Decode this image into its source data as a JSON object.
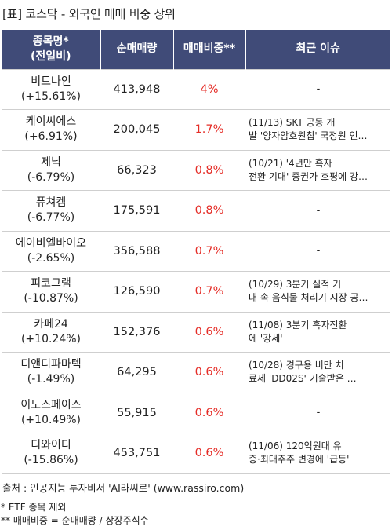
{
  "title": "[표] 코스닥 - 외국인 매매 비중 상위",
  "columns": {
    "name_line1": "종목명*",
    "name_line2": "(전일비)",
    "volume": "순매매량",
    "ratio": "매매비중**",
    "issue": "최근 이슈"
  },
  "rows": [
    {
      "name": "비트나인",
      "change": "(+15.61%)",
      "volume": "413,948",
      "ratio": "4%",
      "issue_line1": "-",
      "issue_line2": ""
    },
    {
      "name": "케이씨에스",
      "change": "(+6.91%)",
      "volume": "200,045",
      "ratio": "1.7%",
      "issue_line1": "(11/13) SKT 공동 개",
      "issue_line2": "발 '양자암호원칩' 국정원 인…"
    },
    {
      "name": "제닉",
      "change": "(-6.79%)",
      "volume": "66,323",
      "ratio": "0.8%",
      "issue_line1": "(10/21) '4년만 흑자",
      "issue_line2": "전환 기대' 증권가 호평에 강…"
    },
    {
      "name": "퓨쳐켐",
      "change": "(-6.77%)",
      "volume": "175,591",
      "ratio": "0.8%",
      "issue_line1": "-",
      "issue_line2": ""
    },
    {
      "name": "에이비엘바이오",
      "change": "(-2.65%)",
      "volume": "356,588",
      "ratio": "0.7%",
      "issue_line1": "-",
      "issue_line2": ""
    },
    {
      "name": "피코그램",
      "change": "(-10.87%)",
      "volume": "126,590",
      "ratio": "0.7%",
      "issue_line1": "(10/29) 3분기 실적 기",
      "issue_line2": "대 속 음식물 처리기 시장 공…"
    },
    {
      "name": "카페24",
      "change": "(+10.24%)",
      "volume": "152,376",
      "ratio": "0.6%",
      "issue_line1": "(11/08) 3분기 흑자전환",
      "issue_line2": "에 '강세'"
    },
    {
      "name": "디앤디파마텍",
      "change": "(-1.49%)",
      "volume": "64,295",
      "ratio": "0.6%",
      "issue_line1": "(10/28) 경구용 비만 치",
      "issue_line2": "료제 'DD02S' 기술받은 …"
    },
    {
      "name": "이노스페이스",
      "change": "(+10.49%)",
      "volume": "55,915",
      "ratio": "0.6%",
      "issue_line1": "-",
      "issue_line2": ""
    },
    {
      "name": "디와이디",
      "change": "(-15.86%)",
      "volume": "453,751",
      "ratio": "0.6%",
      "issue_line1": "(11/06) 120억원대 유",
      "issue_line2": "증·최대주주 변경에 '급등'"
    }
  ],
  "source": "출처 : 인공지능 투자비서 'AI라씨로' (www.rassiro.com)",
  "notes": [
    "* ETF 종목 제외",
    "** 매매비중 = 순매매량 / 상장주식수"
  ],
  "colors": {
    "header_bg": "#404b78",
    "ratio_text": "#e52d27"
  }
}
